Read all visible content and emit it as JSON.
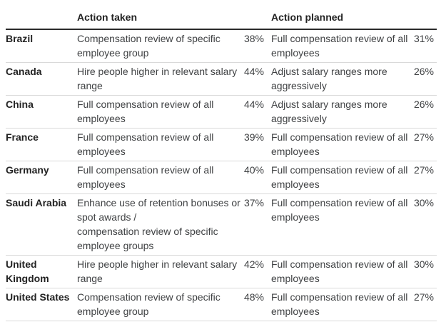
{
  "chart_data": {
    "type": "table",
    "headers": {
      "country": "",
      "action_taken": "Action taken",
      "action_planned": "Action planned"
    },
    "rows": [
      {
        "country": "Brazil",
        "action_taken": "Compensation review of specific employee group",
        "action_taken_pct": "38%",
        "action_planned": "Full compensation review of all employees",
        "action_planned_pct": "31%"
      },
      {
        "country": "Canada",
        "action_taken": "Hire people higher in relevant salary range",
        "action_taken_pct": "44%",
        "action_planned": "Adjust salary ranges more aggressively",
        "action_planned_pct": "26%"
      },
      {
        "country": "China",
        "action_taken": "Full compensation review of all employees",
        "action_taken_pct": "44%",
        "action_planned": "Adjust salary ranges more aggressively",
        "action_planned_pct": "26%"
      },
      {
        "country": "France",
        "action_taken": "Full compensation review of all employees",
        "action_taken_pct": "39%",
        "action_planned": "Full compensation review of all employees",
        "action_planned_pct": "27%"
      },
      {
        "country": "Germany",
        "action_taken": "Full compensation review of all employees",
        "action_taken_pct": "40%",
        "action_planned": "Full compensation review of all employees",
        "action_planned_pct": "27%"
      },
      {
        "country": "Saudi Arabia",
        "action_taken": "Enhance use of retention bonuses or spot awards /\ncompensation review of specific employee groups",
        "action_taken_pct": "37%",
        "action_planned": "Full compensation review of all employees",
        "action_planned_pct": "30%"
      },
      {
        "country": "United Kingdom",
        "action_taken": "Hire people higher in relevant salary range",
        "action_taken_pct": "42%",
        "action_planned": "Full compensation review of all employees",
        "action_planned_pct": "30%"
      },
      {
        "country": "United States",
        "action_taken": "Compensation review of specific employee group",
        "action_taken_pct": "48%",
        "action_planned": "Full compensation review of all employees",
        "action_planned_pct": "27%"
      }
    ]
  },
  "colors": {
    "background": "#ffffff",
    "header_text": "#232323",
    "body_text": "#3f4143",
    "header_rule": "#2b2b2b",
    "row_rule": "#d9d9d9"
  }
}
